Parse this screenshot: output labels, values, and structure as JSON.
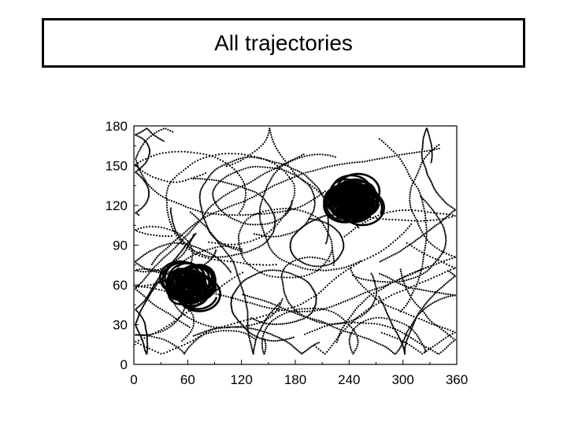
{
  "slide": {
    "title": "All trajectories"
  },
  "chart_data": {
    "type": "scatter",
    "title": "All trajectories",
    "xlabel": "",
    "ylabel": "",
    "xlim": [
      0,
      360
    ],
    "ylim": [
      0,
      180
    ],
    "xticks": [
      0,
      60,
      120,
      180,
      240,
      300,
      360
    ],
    "yticks": [
      0,
      30,
      60,
      90,
      120,
      150,
      180
    ],
    "grid": false,
    "legend": "none",
    "clusters": [
      {
        "x": 62,
        "y": 60
      },
      {
        "x": 245,
        "y": 124
      }
    ],
    "colors": {
      "marks": "#000000",
      "axis": "#000000",
      "background": "#ffffff"
    }
  }
}
